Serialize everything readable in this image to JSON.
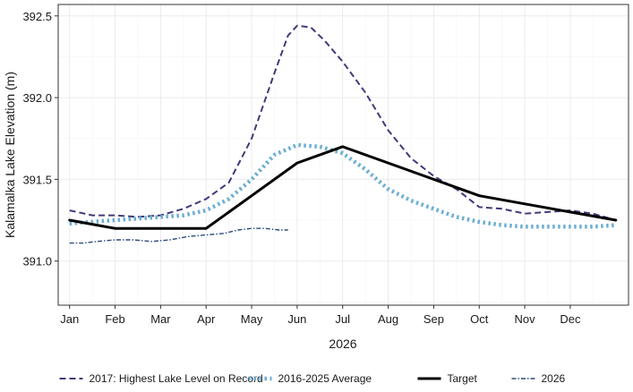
{
  "chart_data": {
    "type": "line",
    "title": "",
    "xlabel": "2026",
    "ylabel": "Kalamalka Lake Elevation (m)",
    "x_ticks": [
      "Jan",
      "Feb",
      "Mar",
      "Apr",
      "May",
      "Jun",
      "Jul",
      "Aug",
      "Sep",
      "Oct",
      "Nov",
      "Dec"
    ],
    "xlim": [
      0.75,
      13.28
    ],
    "y_ticks": [
      391.0,
      391.5,
      392.0,
      392.5
    ],
    "y_tick_labels": [
      "391.0",
      "391.5",
      "392.0",
      "392.5"
    ],
    "ylim": [
      390.73,
      392.57
    ],
    "grid": true,
    "legend_position": "bottom",
    "series": [
      {
        "name": "2017: Highest Lake Level on Record",
        "color": "#3f3a7a",
        "style": "dashed",
        "x": [
          1,
          1.5,
          2,
          2.5,
          3,
          3.5,
          4,
          4.5,
          5,
          5.5,
          5.8,
          6,
          6.3,
          6.6,
          7,
          7.5,
          8,
          8.5,
          9,
          9.5,
          10,
          10.5,
          11,
          11.5,
          12,
          12.5,
          13
        ],
        "y": [
          391.31,
          391.28,
          391.28,
          391.27,
          391.28,
          391.32,
          391.38,
          391.48,
          391.75,
          392.15,
          392.38,
          392.44,
          392.43,
          392.35,
          392.22,
          392.03,
          391.8,
          391.63,
          391.52,
          391.44,
          391.33,
          391.32,
          391.29,
          391.3,
          391.31,
          391.29,
          391.25
        ]
      },
      {
        "name": "2016-2025 Average",
        "color": "#6aaed3",
        "style": "dotted",
        "x": [
          1,
          1.5,
          2,
          2.5,
          3,
          3.5,
          4,
          4.5,
          5,
          5.5,
          6,
          6.5,
          7,
          7.5,
          8,
          8.5,
          9,
          9.5,
          10,
          10.5,
          11,
          11.5,
          12,
          12.5,
          13
        ],
        "y": [
          391.23,
          391.24,
          391.25,
          391.26,
          391.27,
          391.28,
          391.31,
          391.38,
          391.5,
          391.65,
          391.71,
          391.7,
          391.66,
          391.56,
          391.44,
          391.37,
          391.32,
          391.27,
          391.24,
          391.22,
          391.21,
          391.21,
          391.21,
          391.21,
          391.22
        ]
      },
      {
        "name": "Target",
        "color": "#000000",
        "style": "solid",
        "x": [
          1,
          2,
          3,
          4,
          5,
          6,
          7,
          8,
          9,
          10,
          11,
          12,
          13
        ],
        "y": [
          391.25,
          391.2,
          391.2,
          391.2,
          391.4,
          391.6,
          391.7,
          391.6,
          391.5,
          391.4,
          391.35,
          391.3,
          391.25
        ]
      },
      {
        "name": "2026",
        "color": "#2c4a7a",
        "style": "dashdot",
        "x": [
          1,
          1.3,
          1.6,
          2,
          2.4,
          2.8,
          3.2,
          3.6,
          4,
          4.4,
          4.7,
          5,
          5.3,
          5.6,
          5.8
        ],
        "y": [
          391.11,
          391.11,
          391.12,
          391.13,
          391.13,
          391.12,
          391.13,
          391.15,
          391.16,
          391.17,
          391.19,
          391.2,
          391.2,
          391.19,
          391.19
        ]
      }
    ]
  }
}
